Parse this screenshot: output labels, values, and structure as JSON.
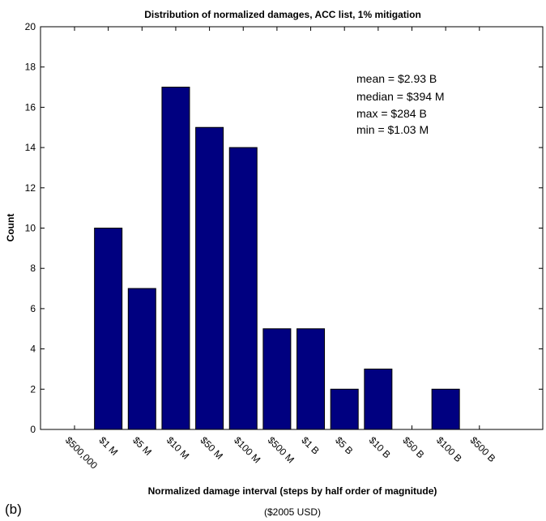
{
  "panel_label": "(b)",
  "units_note": "($2005 USD)",
  "chart_data": {
    "type": "bar",
    "title": "Distribution of normalized damages, ACC list, 1% mitigation",
    "xlabel": "Normalized damage interval (steps by half order of magnitude)",
    "ylabel": "Count",
    "ylim": [
      0,
      20
    ],
    "yticks": [
      0,
      2,
      4,
      6,
      8,
      10,
      12,
      14,
      16,
      18,
      20
    ],
    "grid": false,
    "bar_color": "#000080",
    "tick_labels": [
      "$500,000",
      "$1 M",
      "$5 M",
      "$10 M",
      "$50 M",
      "$100 M",
      "$500 M",
      "$1 B",
      "$5 B",
      "$10 B",
      "$50 B",
      "$100 B",
      "$500 B"
    ],
    "values": [
      0,
      10,
      7,
      17,
      15,
      14,
      5,
      5,
      2,
      3,
      0,
      2,
      0
    ],
    "annotations": [
      "mean = $2.93 B",
      "median = $394 M",
      "max = $284 B",
      "min = $1.03 M"
    ]
  }
}
